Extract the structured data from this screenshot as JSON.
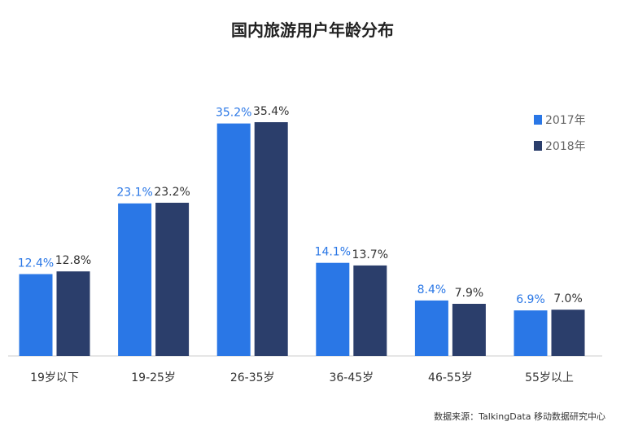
{
  "chart_data": {
    "type": "bar",
    "title": "国内旅游用户年龄分布",
    "categories": [
      "19岁以下",
      "19-25岁",
      "26-35岁",
      "36-45岁",
      "46-55岁",
      "55岁以上"
    ],
    "series": [
      {
        "name": "2017年",
        "color": "#2a77e6",
        "values": [
          12.4,
          23.1,
          35.2,
          14.1,
          8.4,
          6.9
        ],
        "labels": [
          "12.4%",
          "23.1%",
          "35.2%",
          "14.1%",
          "8.4%",
          "6.9%"
        ]
      },
      {
        "name": "2018年",
        "color": "#2b3e6b",
        "values": [
          12.8,
          23.2,
          35.4,
          13.7,
          7.9,
          7.0
        ],
        "labels": [
          "12.8%",
          "23.2%",
          "35.4%",
          "13.7%",
          "7.9%",
          "7.0%"
        ]
      }
    ],
    "ylim": [
      0,
      35.4
    ],
    "grid": false,
    "legend_position": "top-right",
    "source": "数据来源：TalkingData 移动数据研究中心"
  }
}
